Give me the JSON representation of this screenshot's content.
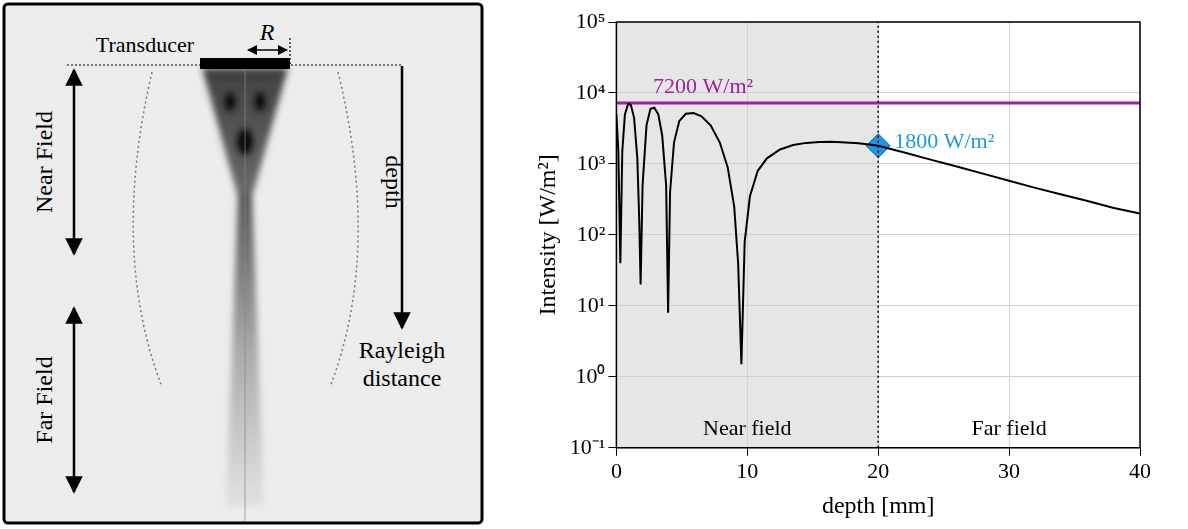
{
  "diagram": {
    "transducer": "Transducer",
    "radius": "R",
    "near_field": "Near Field",
    "far_field": "Far Field",
    "depth": "depth",
    "rayleigh": "Rayleigh distance"
  },
  "chart_data": {
    "type": "line",
    "x_label": "depth [mm]",
    "y_label": "Intensity [W/m²]",
    "x": [
      0,
      0.15,
      0.3,
      0.45,
      0.65,
      0.9,
      1.1,
      1.35,
      1.6,
      1.75,
      1.85,
      2.0,
      2.3,
      2.6,
      2.9,
      3.2,
      3.5,
      3.8,
      3.95,
      4.1,
      4.4,
      4.8,
      5.3,
      5.9,
      6.5,
      7.2,
      7.9,
      8.5,
      9.0,
      9.3,
      9.55,
      9.8,
      10.2,
      10.8,
      11.5,
      12.5,
      13.5,
      14.5,
      15.5,
      16.5,
      17.5,
      18.5,
      19.3,
      20,
      22,
      24,
      26,
      28,
      30,
      32,
      34,
      36,
      38,
      40
    ],
    "values": [
      5000,
      1500,
      40,
      1500,
      5000,
      7000,
      6800,
      4500,
      1200,
      150,
      20,
      500,
      3500,
      6000,
      6200,
      5000,
      2500,
      500,
      8,
      400,
      2000,
      4000,
      5100,
      5200,
      4700,
      3500,
      2000,
      900,
      250,
      40,
      1.5,
      80,
      350,
      800,
      1200,
      1600,
      1850,
      1980,
      2030,
      2050,
      2000,
      1950,
      1880,
      1800,
      1450,
      1150,
      920,
      730,
      580,
      460,
      370,
      300,
      240,
      200
    ],
    "color": "#000000",
    "xlim": [
      0,
      40
    ],
    "xticks": [
      0,
      10,
      20,
      30,
      40
    ],
    "ylim": [
      0.1,
      100000
    ],
    "yticks": [
      {
        "value": 0.1,
        "label": "10⁻¹"
      },
      {
        "value": 1,
        "label": "10⁰"
      },
      {
        "value": 10,
        "label": "10¹"
      },
      {
        "value": 100,
        "label": "10²"
      },
      {
        "value": 1000,
        "label": "10³"
      },
      {
        "value": 10000,
        "label": "10⁴"
      },
      {
        "value": 100000,
        "label": "10⁵"
      }
    ],
    "log": "y",
    "grid": true,
    "annotations": [
      {
        "type": "region",
        "x": [
          0,
          20
        ],
        "label": "Near field",
        "color": "#e6e6e6"
      },
      {
        "type": "region",
        "x": [
          20,
          40
        ],
        "label": "Far field"
      },
      {
        "type": "vline",
        "x": 20,
        "color": "#000000",
        "line_style": "dotted"
      },
      {
        "type": "hline",
        "y": 7200,
        "label": "7200 W/m²",
        "color": "#a0209e"
      },
      {
        "type": "point",
        "x": 20,
        "y": 1800,
        "label": "1800 W/m²",
        "color": "#1e96e6",
        "marker": "diamond"
      }
    ]
  }
}
